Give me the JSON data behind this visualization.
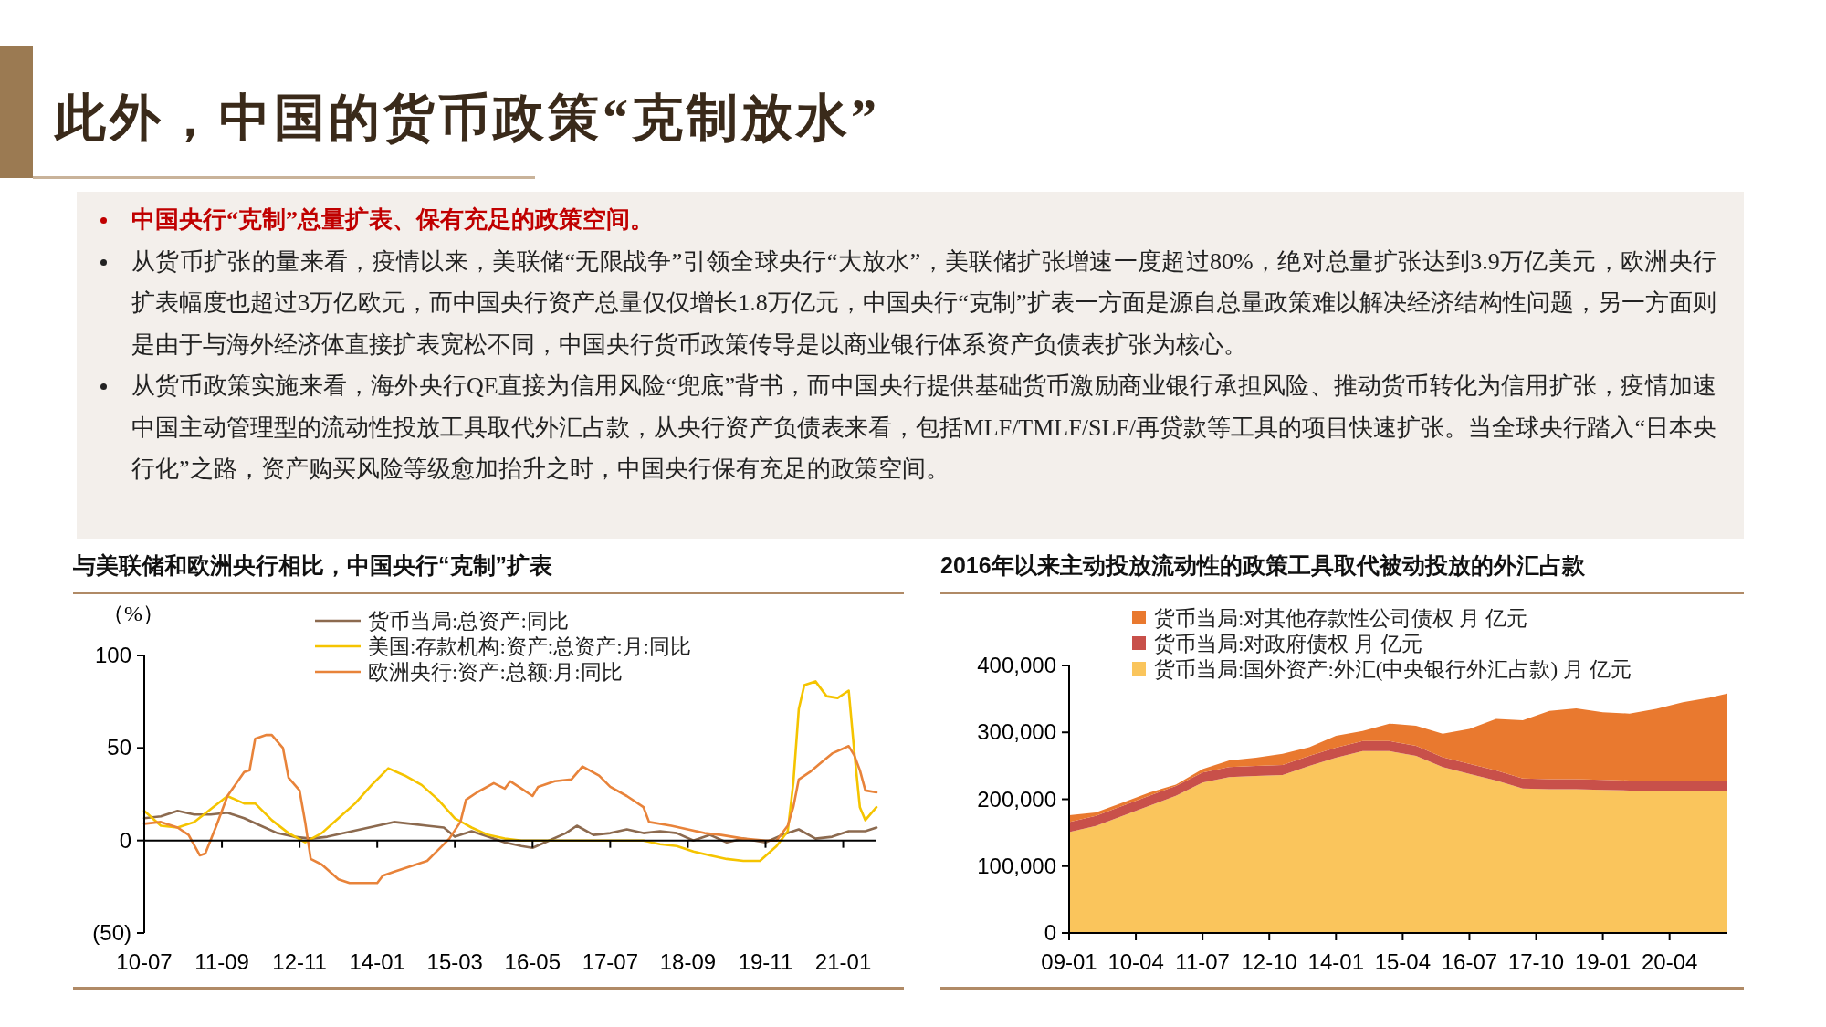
{
  "chart_data": [
    {
      "type": "other",
      "title": "此外，中国的货币政策“克制放水”",
      "annotations": [
        "中国央行“克制”总量扩表、保有充足的政策空间。",
        "从货币扩张的量来看，疫情以来，美联储“无限战争”引领全球央行“大放水”，美联储扩张增速一度超过80%，绝对总量扩张达到3.9万亿美元，欧洲央行扩表幅度也超过3万亿欧元，而中国央行资产总量仅仅增长1.8万亿元，中国央行“克制”扩表一方面是源自总量政策难以解决经济结构性问题，另一方面则是由于与海外经济体直接扩表宽松不同，中国央行货币政策传导是以商业银行体系资产负债表扩张为核心。",
        "从货币政策实施来看，海外央行QE直接为信用风险“兜底”背书，而中国央行提供基础货币激励商业银行承担风险、推动货币转化为信用扩张，疫情加速中国主动管理型的流动性投放工具取代外汇占款，从央行资产负债表来看，包括MLF/TMLF/SLF/再贷款等工具的项目快速扩张。当全球央行踏入“日本央行化”之路，资产购买风险等级愈加抬升之时，中国央行保有充足的政策空间。"
      ]
    },
    {
      "type": "line",
      "title": "与美联储和欧洲央行相比，中国央行“克制”扩表",
      "ylabel": "（%）",
      "legend": "top",
      "xlim": [
        "2010-07",
        "2021-07"
      ],
      "ylim": [
        -50,
        100
      ],
      "xticks": [
        {
          "value": "2010-07",
          "label": "10-07"
        },
        {
          "value": "2011-09",
          "label": "11-09"
        },
        {
          "value": "2012-11",
          "label": "12-11"
        },
        {
          "value": "2014-01",
          "label": "14-01"
        },
        {
          "value": "2015-03",
          "label": "15-03"
        },
        {
          "value": "2016-05",
          "label": "16-05"
        },
        {
          "value": "2017-07",
          "label": "17-07"
        },
        {
          "value": "2018-09",
          "label": "18-09"
        },
        {
          "value": "2019-11",
          "label": "19-11"
        },
        {
          "value": "2021-01",
          "label": "21-01"
        }
      ],
      "yticks": [
        {
          "value": -50,
          "label": "(50)"
        },
        0,
        50,
        100
      ],
      "series": [
        {
          "name": "货币当局:总资产:同比",
          "color": "#8c6a4f",
          "x": [
            "2010-07",
            "2010-10",
            "2011-01",
            "2011-04",
            "2011-07",
            "2011-10",
            "2012-01",
            "2012-04",
            "2012-07",
            "2012-10",
            "2013-01",
            "2013-04",
            "2013-07",
            "2013-10",
            "2014-01",
            "2014-04",
            "2014-07",
            "2014-10",
            "2015-01",
            "2015-03",
            "2015-06",
            "2015-09",
            "2015-12",
            "2016-03",
            "2016-05",
            "2016-08",
            "2016-11",
            "2017-01",
            "2017-04",
            "2017-07",
            "2017-10",
            "2018-01",
            "2018-04",
            "2018-07",
            "2018-10",
            "2019-01",
            "2019-04",
            "2019-07",
            "2019-11",
            "2020-02",
            "2020-05",
            "2020-08",
            "2020-11",
            "2021-02",
            "2021-05",
            "2021-07"
          ],
          "values": [
            12,
            13,
            16,
            14,
            14,
            15,
            12,
            8,
            4,
            2,
            1,
            2,
            4,
            6,
            8,
            10,
            9,
            8,
            7,
            2,
            5,
            2,
            -1,
            -3,
            -4,
            0,
            4,
            8,
            3,
            4,
            6,
            4,
            5,
            4,
            0,
            3,
            -1,
            1,
            -1,
            3,
            6,
            1,
            2,
            5,
            5,
            7
          ]
        },
        {
          "name": "美国:存款机构:资产:总资产:月:同比",
          "color": "#f5c400",
          "x": [
            "2010-07",
            "2010-10",
            "2011-01",
            "2011-04",
            "2011-07",
            "2011-10",
            "2012-01",
            "2012-03",
            "2012-06",
            "2012-09",
            "2012-12",
            "2013-03",
            "2013-06",
            "2013-09",
            "2013-12",
            "2014-03",
            "2014-06",
            "2014-09",
            "2014-12",
            "2015-03",
            "2015-06",
            "2015-09",
            "2015-12",
            "2016-03",
            "2017-01",
            "2018-01",
            "2018-04",
            "2018-07",
            "2018-10",
            "2019-01",
            "2019-04",
            "2019-07",
            "2019-10",
            "2020-01",
            "2020-03",
            "2020-04",
            "2020-05",
            "2020-06",
            "2020-08",
            "2020-10",
            "2020-12",
            "2021-02",
            "2021-03",
            "2021-04",
            "2021-05",
            "2021-07"
          ],
          "values": [
            16,
            8,
            7,
            10,
            17,
            24,
            20,
            20,
            11,
            4,
            -1,
            4,
            12,
            20,
            30,
            39,
            35,
            30,
            22,
            12,
            7,
            3,
            1,
            0,
            0,
            0,
            -2,
            -3,
            -6,
            -8,
            -10,
            -11,
            -11,
            -3,
            5,
            31,
            71,
            84,
            86,
            78,
            77,
            81,
            48,
            18,
            11,
            18
          ]
        },
        {
          "name": "欧洲央行:资产:总额:月:同比",
          "color": "#e8833a",
          "x": [
            "2010-07",
            "2010-10",
            "2011-01",
            "2011-03",
            "2011-05",
            "2011-06",
            "2011-08",
            "2011-10",
            "2012-01",
            "2012-02",
            "2012-03",
            "2012-05",
            "2012-06",
            "2012-08",
            "2012-09",
            "2012-11",
            "2012-12",
            "2013-01",
            "2013-03",
            "2013-06",
            "2013-08",
            "2014-01",
            "2014-02",
            "2014-04",
            "2014-07",
            "2014-10",
            "2014-12",
            "2015-02",
            "2015-04",
            "2015-05",
            "2015-07",
            "2015-10",
            "2015-12",
            "2016-01",
            "2016-03",
            "2016-05",
            "2016-06",
            "2016-09",
            "2016-12",
            "2017-02",
            "2017-05",
            "2017-07",
            "2017-10",
            "2018-01",
            "2018-02",
            "2018-06",
            "2018-09",
            "2018-12",
            "2019-03",
            "2019-07",
            "2019-11",
            "2020-01",
            "2020-03",
            "2020-04",
            "2020-05",
            "2020-07",
            "2020-09",
            "2020-11",
            "2021-02",
            "2021-03",
            "2021-04",
            "2021-05",
            "2021-07"
          ],
          "values": [
            9,
            10,
            7,
            3,
            -8,
            -7,
            8,
            24,
            37,
            38,
            55,
            57,
            57,
            50,
            34,
            27,
            10,
            -10,
            -13,
            -21,
            -23,
            -23,
            -19,
            -17,
            -14,
            -11,
            -5,
            1,
            10,
            22,
            26,
            31,
            28,
            32,
            28,
            24,
            29,
            32,
            33,
            40,
            35,
            29,
            24,
            18,
            10,
            8,
            6,
            4,
            3,
            1,
            0,
            0,
            8,
            18,
            33,
            37,
            42,
            47,
            51,
            46,
            38,
            27,
            26
          ]
        }
      ]
    },
    {
      "type": "area",
      "stacked": true,
      "title": "2016年以来主动投放流动性的政策工具取代被动投放的外汇占款",
      "legend": "top",
      "xlim": [
        "2009-01",
        "2021-05"
      ],
      "ylim": [
        0,
        400000
      ],
      "xticks": [
        {
          "value": "2009-01",
          "label": "09-01"
        },
        {
          "value": "2010-04",
          "label": "10-04"
        },
        {
          "value": "2011-07",
          "label": "11-07"
        },
        {
          "value": "2012-10",
          "label": "12-10"
        },
        {
          "value": "2014-01",
          "label": "14-01"
        },
        {
          "value": "2015-04",
          "label": "15-04"
        },
        {
          "value": "2016-07",
          "label": "16-07"
        },
        {
          "value": "2017-10",
          "label": "17-10"
        },
        {
          "value": "2019-01",
          "label": "19-01"
        },
        {
          "value": "2020-04",
          "label": "20-04"
        }
      ],
      "yticks": [
        0,
        {
          "value": 100000,
          "label": "100,000"
        },
        {
          "value": 200000,
          "label": "200,000"
        },
        {
          "value": 300000,
          "label": "300,000"
        },
        {
          "value": 400000,
          "label": "400,000"
        }
      ],
      "x": [
        "2009-01",
        "2009-07",
        "2010-01",
        "2010-07",
        "2011-01",
        "2011-07",
        "2012-01",
        "2012-07",
        "2013-01",
        "2013-07",
        "2014-01",
        "2014-07",
        "2015-01",
        "2015-07",
        "2016-01",
        "2016-07",
        "2017-01",
        "2017-07",
        "2018-01",
        "2018-07",
        "2019-01",
        "2019-07",
        "2020-01",
        "2020-07",
        "2021-01",
        "2021-05"
      ],
      "series": [
        {
          "name": "货币当局:国外资产:外汇(中央银行外汇占款) 月 亿元",
          "color": "#fac55c",
          "values": [
            151000,
            160000,
            175000,
            190000,
            205000,
            225000,
            233000,
            235000,
            236000,
            250000,
            262000,
            272000,
            272000,
            265000,
            248000,
            238000,
            228000,
            216000,
            215000,
            215000,
            214000,
            213000,
            212000,
            212000,
            212000,
            213000
          ]
        },
        {
          "name": "货币当局:对政府债权 月 亿元",
          "color": "#c8504a",
          "values": [
            15000,
            15000,
            15000,
            15000,
            15000,
            15000,
            15000,
            15000,
            15000,
            15000,
            15000,
            15000,
            15000,
            15000,
            15000,
            15000,
            15000,
            15000,
            15000,
            15000,
            15000,
            15000,
            15000,
            15000,
            15000,
            15000
          ]
        },
        {
          "name": "货币当局:对其他存款性公司债权 月 亿元",
          "color": "#e9792f",
          "values": [
            10000,
            5000,
            5000,
            5000,
            2000,
            5000,
            10000,
            12000,
            17000,
            13000,
            18000,
            15000,
            26000,
            30000,
            35000,
            52000,
            77000,
            87000,
            102000,
            106000,
            101000,
            100000,
            108000,
            118000,
            125000,
            130000
          ]
        }
      ]
    }
  ]
}
